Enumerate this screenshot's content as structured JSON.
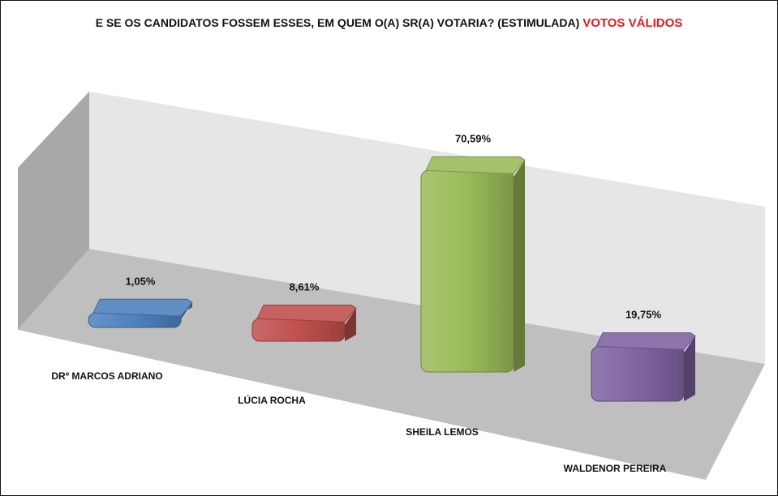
{
  "title": {
    "main": "E SE OS CANDIDATOS FOSSEM ESSES, EM QUEM O(A) SR(A) VOTARIA? (ESTIMULADA)",
    "highlight": "VOTOS VÁLIDOS"
  },
  "colors": {
    "highlight": "#e8161c",
    "back_wall": "#e6e6e6",
    "side_wall": "#a8a8a8",
    "floor": "#bfbfbf"
  },
  "chart_data": {
    "type": "bar",
    "categories": [
      "DRº MARCOS ADRIANO",
      "LÚCIA ROCHA",
      "SHEILA LEMOS",
      "WALDENOR PEREIRA"
    ],
    "values": [
      1.05,
      8.61,
      70.59,
      19.75
    ],
    "value_labels": [
      "1,05%",
      "8,61%",
      "70,59%",
      "19,75%"
    ],
    "colors": [
      "#4f81bd",
      "#c0504d",
      "#9bbb59",
      "#8064a2"
    ],
    "title": "E SE OS CANDIDATOS FOSSEM ESSES, EM QUEM O(A) SR(A) VOTARIA? (ESTIMULADA) VOTOS VÁLIDOS",
    "xlabel": "",
    "ylabel": "",
    "ylim": [
      0,
      80
    ],
    "grid": false,
    "legend": "none",
    "style": "3d-bar"
  }
}
